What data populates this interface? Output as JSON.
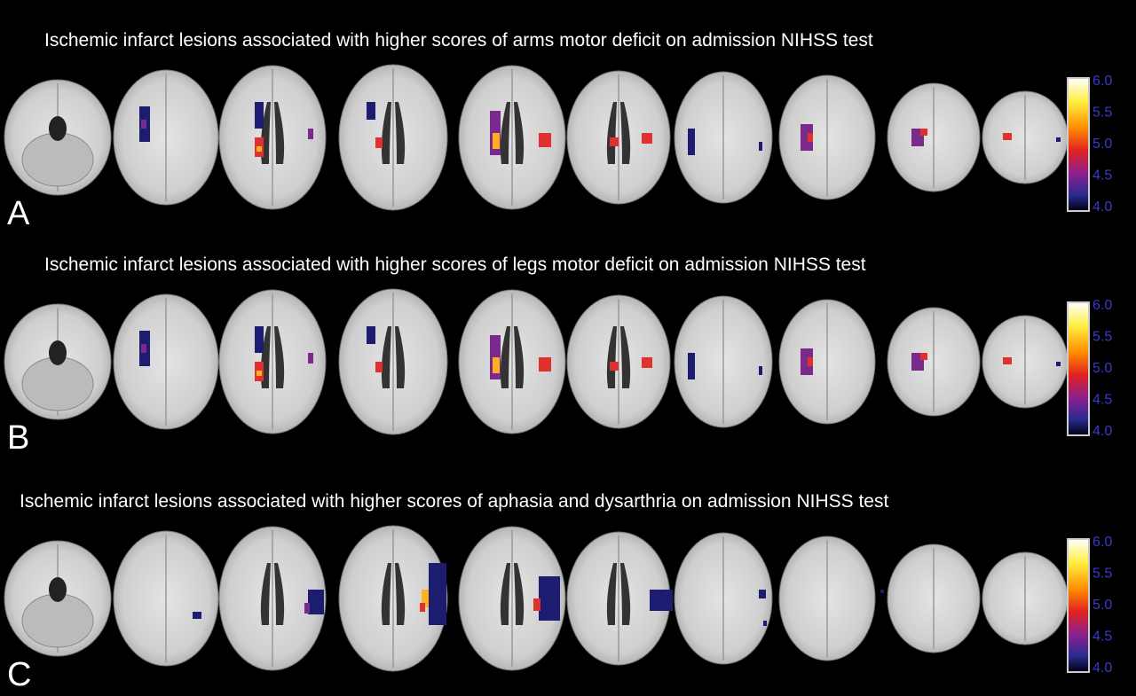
{
  "panels": [
    {
      "title": "Ischemic infarct lesions associated with higher scores of arms motor deficit on admission NIHSS test",
      "label": "A",
      "colorbar_ticks": [
        "6.0",
        "5.5",
        "5.0",
        "4.5",
        "4.0"
      ]
    },
    {
      "title": "Ischemic infarct lesions associated with higher scores of legs motor deficit on admission NIHSS test",
      "label": "B",
      "colorbar_ticks": [
        "6.0",
        "5.5",
        "5.0",
        "4.5",
        "4.0"
      ]
    },
    {
      "title": "Ischemic infarct lesions associated with higher scores of aphasia and dysarthria on admission NIHSS test",
      "label": "C",
      "colorbar_ticks": [
        "6.0",
        "5.5",
        "5.0",
        "4.5",
        "4.0"
      ]
    }
  ]
}
